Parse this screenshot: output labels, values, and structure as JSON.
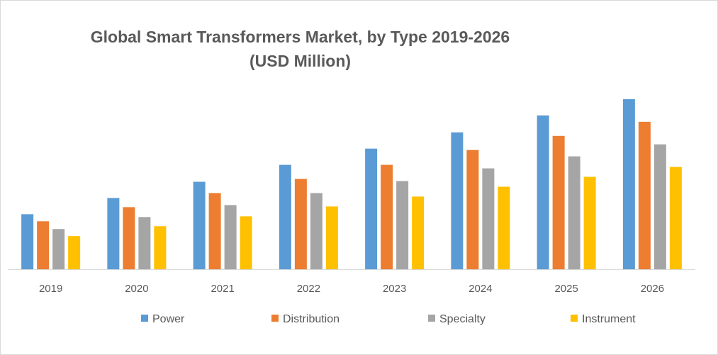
{
  "chart_data": {
    "type": "bar",
    "title_line1": "Global Smart Transformers Market, by Type 2019-2026",
    "title_line2": "(USD Million)",
    "categories": [
      "2019",
      "2020",
      "2021",
      "2022",
      "2023",
      "2024",
      "2025",
      "2026"
    ],
    "series": [
      {
        "name": "Power",
        "color": "#5b9bd5",
        "values": [
          78,
          101,
          124,
          148,
          171,
          194,
          218,
          241
        ]
      },
      {
        "name": "Distribution",
        "color": "#ed7d31",
        "values": [
          68,
          88,
          108,
          128,
          148,
          169,
          189,
          209
        ]
      },
      {
        "name": "Specialty",
        "color": "#a5a5a5",
        "values": [
          57,
          74,
          91,
          108,
          125,
          143,
          160,
          177
        ]
      },
      {
        "name": "Instrument",
        "color": "#ffc000",
        "values": [
          47,
          61,
          75,
          89,
          103,
          117,
          131,
          145
        ]
      }
    ],
    "ylim": [
      0,
      250
    ],
    "gridlines": false,
    "legend_position": "bottom"
  }
}
